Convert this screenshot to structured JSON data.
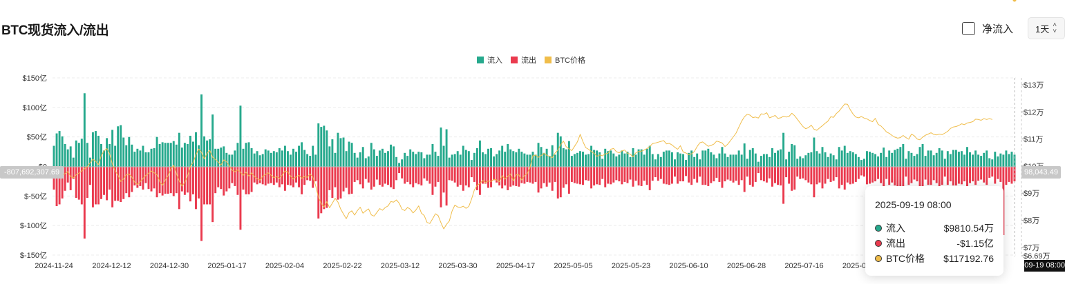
{
  "header": {
    "title": "BTC现货流入/流出",
    "netflow_label": "净流入",
    "interval_value": "1天"
  },
  "colors": {
    "inflow": "#26a98d",
    "outflow": "#ea3a4e",
    "price": "#f0bd4a"
  },
  "legend": [
    {
      "label": "流入",
      "color": "#26a98d"
    },
    {
      "label": "流出",
      "color": "#ea3a4e"
    },
    {
      "label": "BTC价格",
      "color": "#f0bd4a"
    }
  ],
  "crosshair": {
    "left_value": "-807,692,307.69",
    "right_value": "98,043.49",
    "time_label": "2025-09-19 08:00"
  },
  "tooltip": {
    "date": "2025-09-19 08:00",
    "rows": [
      {
        "name": "流入",
        "value": "$9810.54万",
        "color": "#26a98d"
      },
      {
        "name": "流出",
        "value": "-$1.15亿",
        "color": "#ea3a4e"
      },
      {
        "name": "BTC价格",
        "value": "$117192.76",
        "color": "#f0bd4a"
      }
    ]
  },
  "chart_data": {
    "type": "bar",
    "title": "BTC现货流入/流出",
    "grid": true,
    "legend_position": "top",
    "x_tick_labels": [
      "2024-11-24",
      "2024-12-12",
      "2024-12-30",
      "2025-01-17",
      "2025-02-04",
      "2025-02-22",
      "2025-03-12",
      "2025-03-30",
      "2025-04-17",
      "2025-05-05",
      "2025-05-23",
      "2025-06-10",
      "2025-06-28",
      "2025-07-16",
      "2025-08-03",
      "2025-08-21",
      "2025-09-08"
    ],
    "left_axis": {
      "ylim": [
        -150,
        150
      ],
      "unit": "亿",
      "tick_labels": [
        "$150亿",
        "$100亿",
        "$50亿",
        "$0",
        "$-50亿",
        "$-100亿",
        "$-150亿"
      ],
      "tick_values": [
        150,
        100,
        50,
        0,
        -50,
        -100,
        -150
      ]
    },
    "right_axis": {
      "ylim": [
        66900,
        134000
      ],
      "tick_labels": [
        "$13万",
        "$12万",
        "$11万",
        "$10万",
        "$9万",
        "$8万",
        "$7万",
        "$6.69万"
      ],
      "tick_values": [
        130000,
        120000,
        110000,
        100000,
        90000,
        80000,
        70000,
        66900
      ]
    },
    "series": [
      {
        "name": "流入",
        "axis": "left",
        "values": [
          35,
          56,
          60,
          51,
          38,
          29,
          34,
          15,
          44,
          40,
          47,
          124,
          40,
          15,
          58,
          60,
          52,
          38,
          27,
          48,
          38,
          62,
          35,
          68,
          70,
          49,
          36,
          50,
          37,
          25,
          30,
          27,
          35,
          24,
          24,
          30,
          31,
          50,
          38,
          41,
          40,
          40,
          40,
          43,
          37,
          57,
          32,
          40,
          38,
          52,
          42,
          58,
          36,
          122,
          51,
          44,
          46,
          88,
          30,
          30,
          32,
          34,
          23,
          20,
          20,
          27,
          40,
          103,
          30,
          40,
          41,
          31,
          22,
          26,
          19,
          21,
          29,
          27,
          23,
          26,
          24,
          31,
          27,
          35,
          26,
          20,
          30,
          25,
          35,
          41,
          28,
          21,
          18,
          35,
          20,
          73,
          67,
          69,
          61,
          34,
          46,
          23,
          57,
          48,
          49,
          26,
          42,
          40,
          23,
          15,
          24,
          33,
          14,
          17,
          40,
          29,
          18,
          27,
          30,
          23,
          26,
          37,
          34,
          16,
          6,
          12,
          23,
          18,
          29,
          25,
          21,
          25,
          24,
          14,
          20,
          20,
          38,
          25,
          18,
          66,
          35,
          63,
          15,
          20,
          21,
          26,
          20,
          35,
          28,
          26,
          11,
          23,
          31,
          44,
          24,
          21,
          30,
          31,
          17,
          21,
          27,
          35,
          25,
          38,
          29,
          26,
          24,
          30,
          25,
          22,
          20,
          20,
          25,
          20,
          40,
          33,
          23,
          30,
          18,
          36,
          20,
          57,
          51,
          31,
          29,
          43,
          18,
          21,
          23,
          26,
          25,
          20,
          21,
          35,
          28,
          27,
          24,
          13,
          30,
          26,
          27,
          22,
          17,
          20,
          27,
          22,
          25,
          16,
          31,
          20,
          29,
          29,
          20,
          30,
          35,
          21,
          12,
          21,
          16,
          25,
          27,
          27,
          24,
          12,
          24,
          22,
          21,
          11,
          23,
          27,
          16,
          22,
          12,
          27,
          27,
          30,
          24,
          20,
          14,
          22,
          33,
          22,
          16,
          20,
          20,
          20,
          27,
          20,
          39,
          13,
          28,
          31,
          22,
          8,
          18,
          21,
          21,
          16,
          31,
          23,
          27,
          29,
          57,
          12,
          25,
          38,
          36,
          13,
          17,
          14,
          19,
          23,
          24,
          49,
          26,
          22,
          33,
          24,
          16,
          22,
          19,
          12,
          33,
          27,
          35,
          23,
          26,
          24,
          21,
          16,
          11,
          13,
          26,
          25,
          23,
          21,
          17,
          23,
          32,
          16,
          27,
          23,
          28,
          30,
          33,
          38,
          13,
          26,
          23,
          18,
          21,
          33,
          38,
          18,
          27,
          27,
          19,
          23,
          31,
          27,
          13,
          26,
          21,
          28,
          28,
          25,
          26,
          20,
          33,
          24,
          20,
          27,
          20,
          18,
          23,
          27,
          14,
          12,
          25,
          17,
          22,
          20,
          27,
          21,
          25,
          20
        ]
      },
      {
        "name": "流出",
        "axis": "left",
        "values": [
          -38,
          -66,
          -63,
          -53,
          -40,
          -26,
          -39,
          -20,
          -52,
          -55,
          -63,
          -121,
          -52,
          -30,
          -68,
          -63,
          -63,
          -54,
          -47,
          -56,
          -38,
          -68,
          -57,
          -57,
          -59,
          -54,
          -44,
          -51,
          -42,
          -31,
          -35,
          -32,
          -38,
          -27,
          -37,
          -41,
          -36,
          -51,
          -44,
          -48,
          -45,
          -45,
          -44,
          -49,
          -44,
          -71,
          -41,
          -47,
          -43,
          -58,
          -46,
          -71,
          -53,
          -125,
          -63,
          -63,
          -63,
          -93,
          -44,
          -34,
          -37,
          -48,
          -41,
          -36,
          -27,
          -32,
          -47,
          -106,
          -38,
          -46,
          -46,
          -42,
          -26,
          -29,
          -27,
          -29,
          -31,
          -28,
          -27,
          -30,
          -26,
          -34,
          -29,
          -40,
          -30,
          -31,
          -34,
          -26,
          -34,
          -46,
          -30,
          -22,
          -23,
          -35,
          -24,
          -87,
          -78,
          -71,
          -69,
          -39,
          -52,
          -34,
          -55,
          -53,
          -41,
          -35,
          -46,
          -45,
          -25,
          -22,
          -29,
          -36,
          -20,
          -26,
          -38,
          -33,
          -21,
          -30,
          -33,
          -28,
          -30,
          -34,
          -37,
          -22,
          -10,
          -19,
          -28,
          -25,
          -29,
          -34,
          -27,
          -29,
          -31,
          -19,
          -23,
          -28,
          -47,
          -33,
          -25,
          -68,
          -43,
          -65,
          -22,
          -23,
          -26,
          -33,
          -30,
          -40,
          -31,
          -34,
          -17,
          -25,
          -39,
          -47,
          -28,
          -28,
          -35,
          -34,
          -22,
          -26,
          -31,
          -36,
          -31,
          -39,
          -33,
          -31,
          -32,
          -33,
          -27,
          -28,
          -25,
          -26,
          -28,
          -25,
          -43,
          -36,
          -27,
          -33,
          -26,
          -40,
          -25,
          -53,
          -51,
          -35,
          -29,
          -45,
          -25,
          -27,
          -28,
          -29,
          -30,
          -22,
          -23,
          -36,
          -31,
          -29,
          -30,
          -20,
          -34,
          -28,
          -29,
          -26,
          -22,
          -24,
          -29,
          -25,
          -27,
          -21,
          -33,
          -23,
          -31,
          -32,
          -23,
          -30,
          -39,
          -23,
          -17,
          -23,
          -20,
          -28,
          -29,
          -30,
          -28,
          -16,
          -28,
          -24,
          -24,
          -15,
          -26,
          -30,
          -20,
          -26,
          -16,
          -30,
          -30,
          -32,
          -27,
          -24,
          -18,
          -25,
          -35,
          -24,
          -21,
          -23,
          -26,
          -23,
          -30,
          -22,
          -42,
          -16,
          -30,
          -33,
          -25,
          -10,
          -22,
          -24,
          -26,
          -19,
          -33,
          -27,
          -30,
          -31,
          -62,
          -17,
          -28,
          -40,
          -38,
          -16,
          -20,
          -19,
          -22,
          -26,
          -29,
          -51,
          -29,
          -26,
          -36,
          -28,
          -20,
          -25,
          -23,
          -17,
          -36,
          -30,
          -38,
          -26,
          -29,
          -28,
          -25,
          -20,
          -14,
          -16,
          -29,
          -28,
          -26,
          -24,
          -20,
          -27,
          -35,
          -20,
          -30,
          -26,
          -31,
          -33,
          -36,
          -40,
          -16,
          -30,
          -27,
          -21,
          -24,
          -36,
          -41,
          -21,
          -30,
          -30,
          -22,
          -27,
          -34,
          -30,
          -16,
          -30,
          -24,
          -31,
          -31,
          -28,
          -29,
          -24,
          -36,
          -27,
          -24,
          -30,
          -23,
          -21,
          -26,
          -30,
          -18,
          -16,
          -28,
          -20,
          -25,
          -115,
          -30,
          -25,
          -28,
          -24
        ]
      },
      {
        "name": "BTC价格",
        "axis": "right",
        "values": [
          98000,
          97500,
          95800,
          96500,
          97200,
          98000,
          96100,
          95600,
          96800,
          97400,
          98200,
          99000,
          99800,
          101200,
          102500,
          101800,
          100500,
          103800,
          105600,
          106500,
          104500,
          100800,
          98200,
          96700,
          94300,
          95200,
          96800,
          97100,
          95900,
          94100,
          93200,
          94200,
          95400,
          96600,
          97300,
          98200,
          97500,
          96800,
          94300,
          92900,
          94800,
          96500,
          98900,
          100300,
          97200,
          94500,
          92600,
          94000,
          96400,
          99800,
          101400,
          104200,
          106300,
          105100,
          102600,
          104700,
          105800,
          103200,
          102400,
          101500,
          100300,
          102300,
          101600,
          100100,
          98500,
          97900,
          98600,
          97700,
          96600,
          97800,
          96300,
          97500,
          96100,
          95400,
          94800,
          96300,
          96900,
          97500,
          96600,
          95700,
          96100,
          95400,
          96700,
          98200,
          97800,
          96300,
          95200,
          96100,
          96600,
          95500,
          96200,
          95800,
          97100,
          95900,
          92800,
          88500,
          86200,
          84800,
          86900,
          84600,
          86300,
          88100,
          86700,
          84100,
          82300,
          80600,
          82800,
          83500,
          81900,
          83600,
          84800,
          82600,
          83500,
          84200,
          82000,
          81500,
          82900,
          84300,
          83700,
          84700,
          85300,
          86900,
          86700,
          87500,
          86300,
          84100,
          83600,
          84700,
          84100,
          82700,
          83800,
          85300,
          82600,
          81700,
          79200,
          78800,
          80500,
          82400,
          81700,
          79100,
          76800,
          78500,
          79700,
          83400,
          85600,
          84900,
          84700,
          85200,
          84400,
          85100,
          87800,
          91200,
          92900,
          93600,
          94700,
          93900,
          94500,
          94300,
          95100,
          94900,
          94200,
          96500,
          95200,
          96200,
          97100,
          94500,
          96800,
          96700,
          94800,
          96500,
          97200,
          99600,
          103800,
          104100,
          103200,
          103900,
          104700,
          104000,
          103600,
          103100,
          104800,
          105900,
          107900,
          109200,
          107100,
          106400,
          105700,
          107300,
          108900,
          111700,
          109000,
          106800,
          106200,
          105400,
          104700,
          103600,
          104100,
          103800,
          104500,
          104700,
          106200,
          106500,
          105300,
          104900,
          105600,
          105900,
          104700,
          104400,
          103400,
          104900,
          105400,
          105500,
          105900,
          106500,
          107200,
          108300,
          108500,
          108800,
          109100,
          109400,
          108200,
          108400,
          107800,
          106900,
          106200,
          107500,
          105200,
          104800,
          104200,
          104500,
          105400,
          107200,
          108600,
          108900,
          108100,
          107300,
          107600,
          108100,
          109200,
          108900,
          108500,
          107200,
          108100,
          109400,
          110800,
          112200,
          114400,
          116600,
          118200,
          119100,
          118800,
          117900,
          118100,
          117700,
          119300,
          119100,
          119700,
          117800,
          118200,
          118700,
          117600,
          117800,
          118400,
          118100,
          118300,
          119500,
          118600,
          117300,
          115900,
          114600,
          113800,
          114200,
          115100,
          113600,
          113200,
          114100,
          114900,
          115800,
          116600,
          118200,
          118000,
          119400,
          120300,
          121600,
          122900,
          122800,
          120800,
          119200,
          118100,
          117800,
          118300,
          117700,
          117400,
          116800,
          116400,
          117600,
          115400,
          114800,
          113800,
          112600,
          112100,
          111300,
          110700,
          110300,
          110500,
          111300,
          110500,
          109900,
          111800,
          111200,
          110000,
          109700,
          110700,
          111400,
          111800,
          112300,
          111700,
          111500,
          111800,
          111600,
          112200,
          112800,
          113900,
          114400,
          114600,
          115000,
          115600,
          115300,
          115900,
          116100,
          116400,
          117300,
          117200,
          116900,
          117500,
          117200,
          117500,
          117193
        ]
      }
    ]
  }
}
